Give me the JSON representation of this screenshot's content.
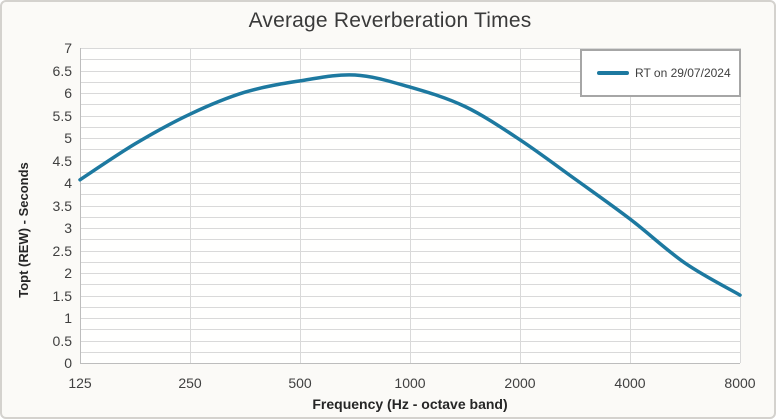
{
  "colors": {
    "series_line": "#1d79a0",
    "gridline": "#d9d9d9",
    "axis_line": "#bdbdbd",
    "plot_background": "#fffffe",
    "chart_background": "#fbfaf7",
    "legend_border": "#a6a6a6",
    "text": "#404040"
  },
  "legend": {
    "label": "RT on 29/07/2024"
  },
  "chart_data": {
    "type": "line",
    "title": "Average Reverberation Times",
    "xlabel": "Frequency (Hz - octave band)",
    "ylabel": "Topt (REW) - Seconds",
    "x_scale": "log2",
    "x_min": 125,
    "x_max": 8000,
    "y_min": 0,
    "y_max": 7,
    "y_major_step": 0.5,
    "y_minor_step": 0.25,
    "grid": true,
    "x_ticks": [
      "125",
      "250",
      "500",
      "1000",
      "2000",
      "4000",
      "8000"
    ],
    "x_tick_values": [
      125,
      250,
      500,
      1000,
      2000,
      4000,
      8000
    ],
    "y_ticks": [
      "0",
      "0.5",
      "1",
      "1.5",
      "2",
      "2.5",
      "3",
      "3.5",
      "4",
      "4.5",
      "5",
      "5.5",
      "6",
      "6.5",
      "7"
    ],
    "legend": {
      "label": "RT on 29/07/2024",
      "position": "top-right"
    },
    "series": [
      {
        "name": "RT on 29/07/2024",
        "color": "#1d79a0",
        "octave_band_values": {
          "125": 4.1,
          "250": 5.5,
          "500": 6.3,
          "1000": 6.15,
          "2000": 5.0,
          "4000": 3.2,
          "8000": 1.5
        },
        "curve_peak": {
          "frequency_hz": 707,
          "value": 6.4
        },
        "points": [
          [
            125,
            4.07
          ],
          [
            177,
            4.87
          ],
          [
            250,
            5.53
          ],
          [
            354,
            6.02
          ],
          [
            500,
            6.27
          ],
          [
            707,
            6.4
          ],
          [
            1000,
            6.13
          ],
          [
            1414,
            5.7
          ],
          [
            2000,
            4.96
          ],
          [
            2828,
            4.09
          ],
          [
            4000,
            3.2
          ],
          [
            5657,
            2.22
          ],
          [
            8000,
            1.51
          ]
        ]
      }
    ]
  }
}
